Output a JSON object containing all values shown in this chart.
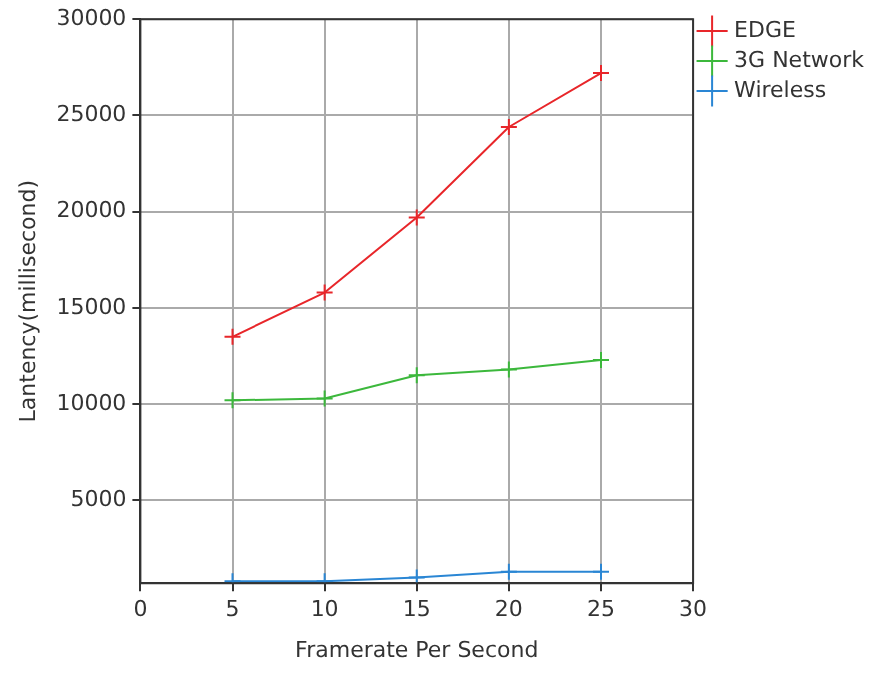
{
  "chart_data": {
    "type": "line",
    "xlabel": "Framerate Per Second",
    "ylabel": "Lantency(millisecond)",
    "x": [
      5,
      10,
      15,
      20,
      25
    ],
    "series": [
      {
        "name": "EDGE",
        "color": "#e8262a",
        "marker": "cross",
        "values": [
          13500,
          15800,
          19700,
          24400,
          27200
        ]
      },
      {
        "name": "3G Network",
        "color": "#3cb83c",
        "marker": "cross",
        "values": [
          10200,
          10300,
          11500,
          11800,
          12300
        ]
      },
      {
        "name": "Wireless",
        "color": "#2a86d4",
        "marker": "cross",
        "values": [
          800,
          800,
          1000,
          1300,
          1300
        ]
      }
    ],
    "xlim": [
      0,
      30
    ],
    "xticks": [
      0,
      5,
      10,
      15,
      20,
      25,
      30
    ],
    "ylim": [
      700,
      30000
    ],
    "yticks": [
      5000,
      10000,
      15000,
      20000,
      25000,
      30000
    ],
    "grid": true,
    "legend": "top right",
    "line_style": "solid"
  }
}
